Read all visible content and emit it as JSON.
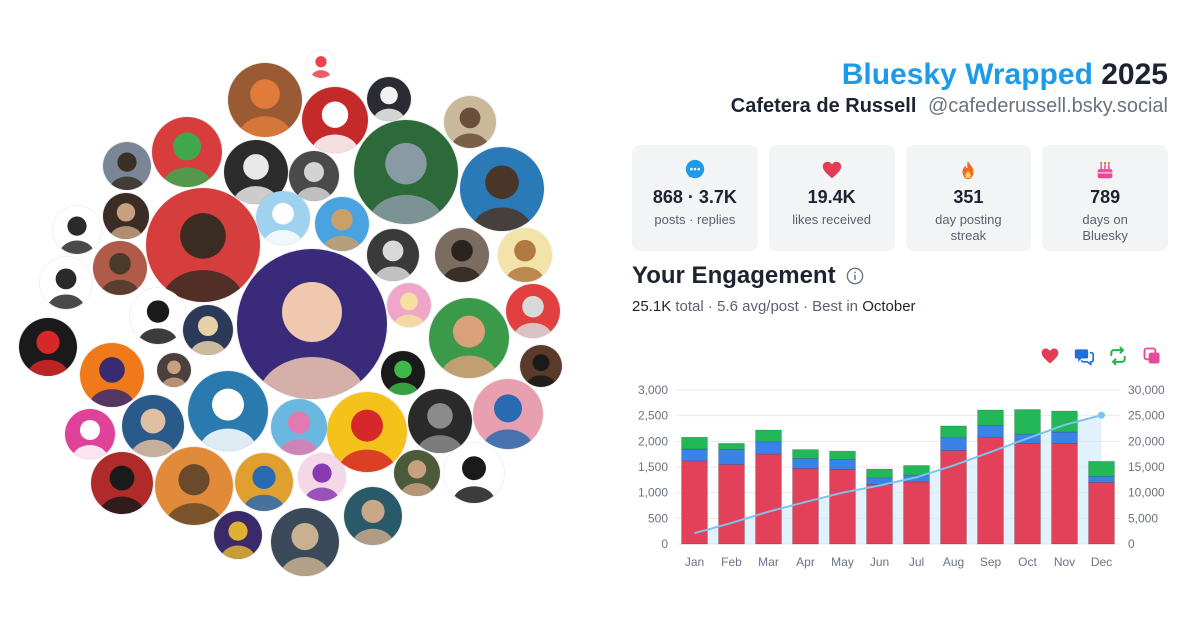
{
  "header": {
    "brand": "Bluesky Wrapped",
    "year": "2025",
    "display_name": "Cafetera de Russell",
    "handle": "@cafederussell.bsky.social"
  },
  "stats": [
    {
      "icon": "speech-bubble-icon",
      "color": "#1e9be8",
      "value": "868 · 3.7K",
      "label": "posts · replies"
    },
    {
      "icon": "heart-icon",
      "color": "#e23d55",
      "value": "19.4K",
      "label": "likes received"
    },
    {
      "icon": "flame-icon",
      "color": "#f06a1f",
      "value": "351",
      "label": "day posting streak"
    },
    {
      "icon": "cake-icon",
      "color": "#e8479a",
      "value": "789",
      "label": "days on Bluesky"
    }
  ],
  "engagement": {
    "title": "Your Engagement",
    "total_value": "25.1K",
    "total_label": "total",
    "avg": "5.6 avg/post",
    "best_prefix": "Best in",
    "best_month": "October",
    "separator": " · "
  },
  "legend_icons": [
    {
      "icon": "heart-icon",
      "color": "#e23d55"
    },
    {
      "icon": "reply-icon",
      "color": "#1e6fd8"
    },
    {
      "icon": "repost-icon",
      "color": "#21b34e"
    },
    {
      "icon": "quote-icon",
      "color": "#e8479a"
    }
  ],
  "colors": {
    "likes": "#e3405a",
    "replies": "#3b82e6",
    "reposts": "#22b857",
    "cumulative_line": "#7cc3ef",
    "cumulative_fill": "#d6ecfb"
  },
  "chart_data": {
    "type": "bar",
    "stacked": true,
    "categories": [
      "Jan",
      "Feb",
      "Mar",
      "Apr",
      "May",
      "Jun",
      "Jul",
      "Aug",
      "Sep",
      "Oct",
      "Nov",
      "Dec"
    ],
    "series": [
      {
        "key": "likes",
        "values": [
          1620,
          1550,
          1750,
          1470,
          1450,
          1160,
          1210,
          1820,
          2080,
          1960,
          1960,
          1200
        ]
      },
      {
        "key": "replies",
        "values": [
          230,
          290,
          240,
          200,
          200,
          130,
          130,
          250,
          230,
          180,
          220,
          120
        ]
      },
      {
        "key": "reposts",
        "values": [
          230,
          120,
          230,
          170,
          160,
          170,
          190,
          230,
          300,
          480,
          410,
          290
        ]
      }
    ],
    "cumulative": [
      2100,
      4100,
      6300,
      8200,
      10000,
      11400,
      13000,
      15300,
      17900,
      20600,
      23200,
      25100
    ],
    "y_left": {
      "min": 0,
      "max": 3000,
      "ticks": [
        "0",
        "500",
        "1,000",
        "1,500",
        "2,000",
        "2,500",
        "3,000"
      ]
    },
    "y_right": {
      "min": 0,
      "max": 30000,
      "ticks": [
        "0",
        "5,000",
        "10,000",
        "15,000",
        "20,000",
        "25,000",
        "30,000"
      ]
    },
    "grid": true
  },
  "avatars": [
    {
      "name": "avatar-thing",
      "bg": "#9a5a34",
      "fg": "#e07b3b",
      "icon": "face"
    },
    {
      "name": "avatar-watermelon",
      "bg": "#ffffff",
      "fg": "#e8434f",
      "icon": "emoji"
    },
    {
      "name": "avatar-black-cat",
      "bg": "#2b2b33",
      "fg": "#f2f2f2",
      "icon": "face"
    },
    {
      "name": "avatar-portrait-painting",
      "bg": "#c9b89a",
      "fg": "#6a4f3a",
      "icon": "face"
    },
    {
      "name": "avatar-inigo",
      "bg": "#c42a2a",
      "fg": "#ffffff",
      "icon": "text"
    },
    {
      "name": "avatar-pixel-dino",
      "bg": "#d83d3d",
      "fg": "#3fa84d",
      "icon": "face"
    },
    {
      "name": "avatar-man-beard",
      "bg": "#7a8695",
      "fg": "#3a3027",
      "icon": "face"
    },
    {
      "name": "avatar-skeleton",
      "bg": "#2c2c2c",
      "fg": "#e9e9e9",
      "icon": "face"
    },
    {
      "name": "avatar-man-hand",
      "bg": "#4a4a4a",
      "fg": "#d3d3d3",
      "icon": "face"
    },
    {
      "name": "avatar-doom",
      "bg": "#2d6a3a",
      "fg": "#8a9aa5",
      "icon": "face"
    },
    {
      "name": "avatar-glasses-man",
      "bg": "#2a7ab8",
      "fg": "#4a3528",
      "icon": "face"
    },
    {
      "name": "avatar-pride-man",
      "bg": "#d63e3e",
      "fg": "#3a2c22",
      "icon": "face"
    },
    {
      "name": "avatar-cartoon-bird",
      "bg": "#9fd2ef",
      "fg": "#ffffff",
      "icon": "face"
    },
    {
      "name": "avatar-cat-pilot",
      "bg": "#4aa3e0",
      "fg": "#c9a06a",
      "icon": "face"
    },
    {
      "name": "avatar-cartoon-boy",
      "bg": "#ffffff",
      "fg": "#2a2a2a",
      "icon": "face"
    },
    {
      "name": "avatar-wolverine",
      "bg": "#3b2d25",
      "fg": "#c7a080",
      "icon": "face"
    },
    {
      "name": "avatar-old-man-pipe",
      "bg": "#b05a4a",
      "fg": "#4a3a2a",
      "icon": "face"
    },
    {
      "name": "avatar-anthony",
      "bg": "#3a3a3a",
      "fg": "#d9d9d9",
      "icon": "face"
    },
    {
      "name": "avatar-bearded-man",
      "bg": "#7a6d60",
      "fg": "#2b241e",
      "icon": "face"
    },
    {
      "name": "avatar-eevee",
      "bg": "#f2e4a8",
      "fg": "#b07a40",
      "icon": "face"
    },
    {
      "name": "avatar-bearded-cartoon",
      "bg": "#ffffff",
      "fg": "#2a2a2a",
      "icon": "face"
    },
    {
      "name": "avatar-barbie-blonde",
      "bg": "#f0a6c8",
      "fg": "#f6e0a0",
      "icon": "face"
    },
    {
      "name": "avatar-blue-haired",
      "bg": "#3a2a7a",
      "fg": "#f0c8b0",
      "icon": "face"
    },
    {
      "name": "avatar-santa-hat",
      "bg": "#3a9a4a",
      "fg": "#d9a07a",
      "icon": "face"
    },
    {
      "name": "avatar-grey-mask",
      "bg": "#e24040",
      "fg": "#d9d9d9",
      "icon": "face"
    },
    {
      "name": "avatar-batman-beyond",
      "bg": "#1a1a1a",
      "fg": "#d62828",
      "icon": "face"
    },
    {
      "name": "avatar-letter-e",
      "bg": "#ffffff",
      "fg": "#1a1a1a",
      "icon": "text"
    },
    {
      "name": "avatar-blonde-woman",
      "bg": "#2c3a5a",
      "fg": "#e6d2a8",
      "icon": "face"
    },
    {
      "name": "avatar-masked-hero",
      "bg": "#f07a1a",
      "fg": "#3a2a70",
      "icon": "face"
    },
    {
      "name": "avatar-dark-woman",
      "bg": "#4a4040",
      "fg": "#c8a080",
      "icon": "face"
    },
    {
      "name": "avatar-elcaro",
      "bg": "#2a7ab0",
      "fg": "#ffffff",
      "icon": "face"
    },
    {
      "name": "avatar-dark-figure",
      "bg": "#5a3a2a",
      "fg": "#1a1a1a",
      "icon": "face"
    },
    {
      "name": "avatar-green-creature",
      "bg": "#1a1a1a",
      "fg": "#3fb84a",
      "icon": "face"
    },
    {
      "name": "avatar-barbie-logo",
      "bg": "#e0429a",
      "fg": "#ffffff",
      "icon": "text"
    },
    {
      "name": "avatar-young-man",
      "bg": "#2a5a8a",
      "fg": "#e0c0a0",
      "icon": "face"
    },
    {
      "name": "avatar-muppet-bird",
      "bg": "#6ab8e0",
      "fg": "#e07ab0",
      "icon": "face"
    },
    {
      "name": "avatar-x-men",
      "bg": "#f4c21a",
      "fg": "#d62828",
      "icon": "face"
    },
    {
      "name": "avatar-photo-dark",
      "bg": "#2a2a2a",
      "fg": "#8a8a8a",
      "icon": "face"
    },
    {
      "name": "avatar-cartoon-fan",
      "bg": "#e8a0b0",
      "fg": "#2a6ab0",
      "icon": "face"
    },
    {
      "name": "avatar-red-witch",
      "bg": "#b02a2a",
      "fg": "#1a1a1a",
      "icon": "face"
    },
    {
      "name": "avatar-action-figure",
      "bg": "#e08a3a",
      "fg": "#6a4a2a",
      "icon": "face"
    },
    {
      "name": "avatar-comic",
      "bg": "#e0a030",
      "fg": "#2a6ab0",
      "icon": "text"
    },
    {
      "name": "avatar-purple-monster",
      "bg": "#f4d8e8",
      "fg": "#8a3ab0",
      "icon": "face"
    },
    {
      "name": "avatar-bald-man",
      "bg": "#4a5a3a",
      "fg": "#c8a080",
      "icon": "face"
    },
    {
      "name": "avatar-ninja",
      "bg": "#ffffff",
      "fg": "#1a1a1a",
      "icon": "face"
    },
    {
      "name": "avatar-thanos",
      "bg": "#3a2a6a",
      "fg": "#e0b030",
      "icon": "face"
    },
    {
      "name": "avatar-small-photo-1",
      "bg": "#3a4a5a",
      "fg": "#c8b090",
      "icon": "face"
    },
    {
      "name": "avatar-small-photo-2",
      "bg": "#2a5a6a",
      "fg": "#c8a888",
      "icon": "face"
    }
  ]
}
